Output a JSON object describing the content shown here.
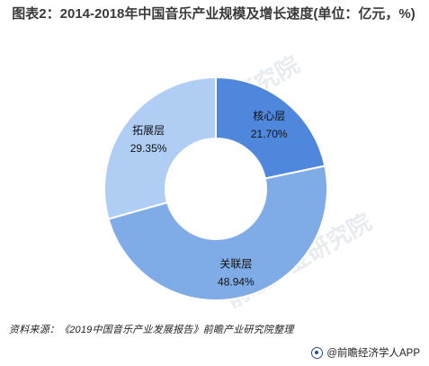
{
  "title": "图表2：2014-2018年中国音乐产业规模及增长速度(单位：亿元，%)",
  "chart_data": {
    "type": "pie",
    "donut": true,
    "categories": [
      "核心层",
      "关联层",
      "拓展层"
    ],
    "values": [
      21.7,
      48.94,
      29.35
    ],
    "labels": [
      "21.70%",
      "48.94%",
      "29.35%"
    ],
    "colors": [
      "#4e87dc",
      "#7fabe6",
      "#b0cdf3"
    ]
  },
  "source": "资料来源：《2019中国音乐产业发展报告》前瞻产业研究院整理",
  "brand": "@前瞻经济学人APP",
  "watermark": "前瞻产业研究院"
}
